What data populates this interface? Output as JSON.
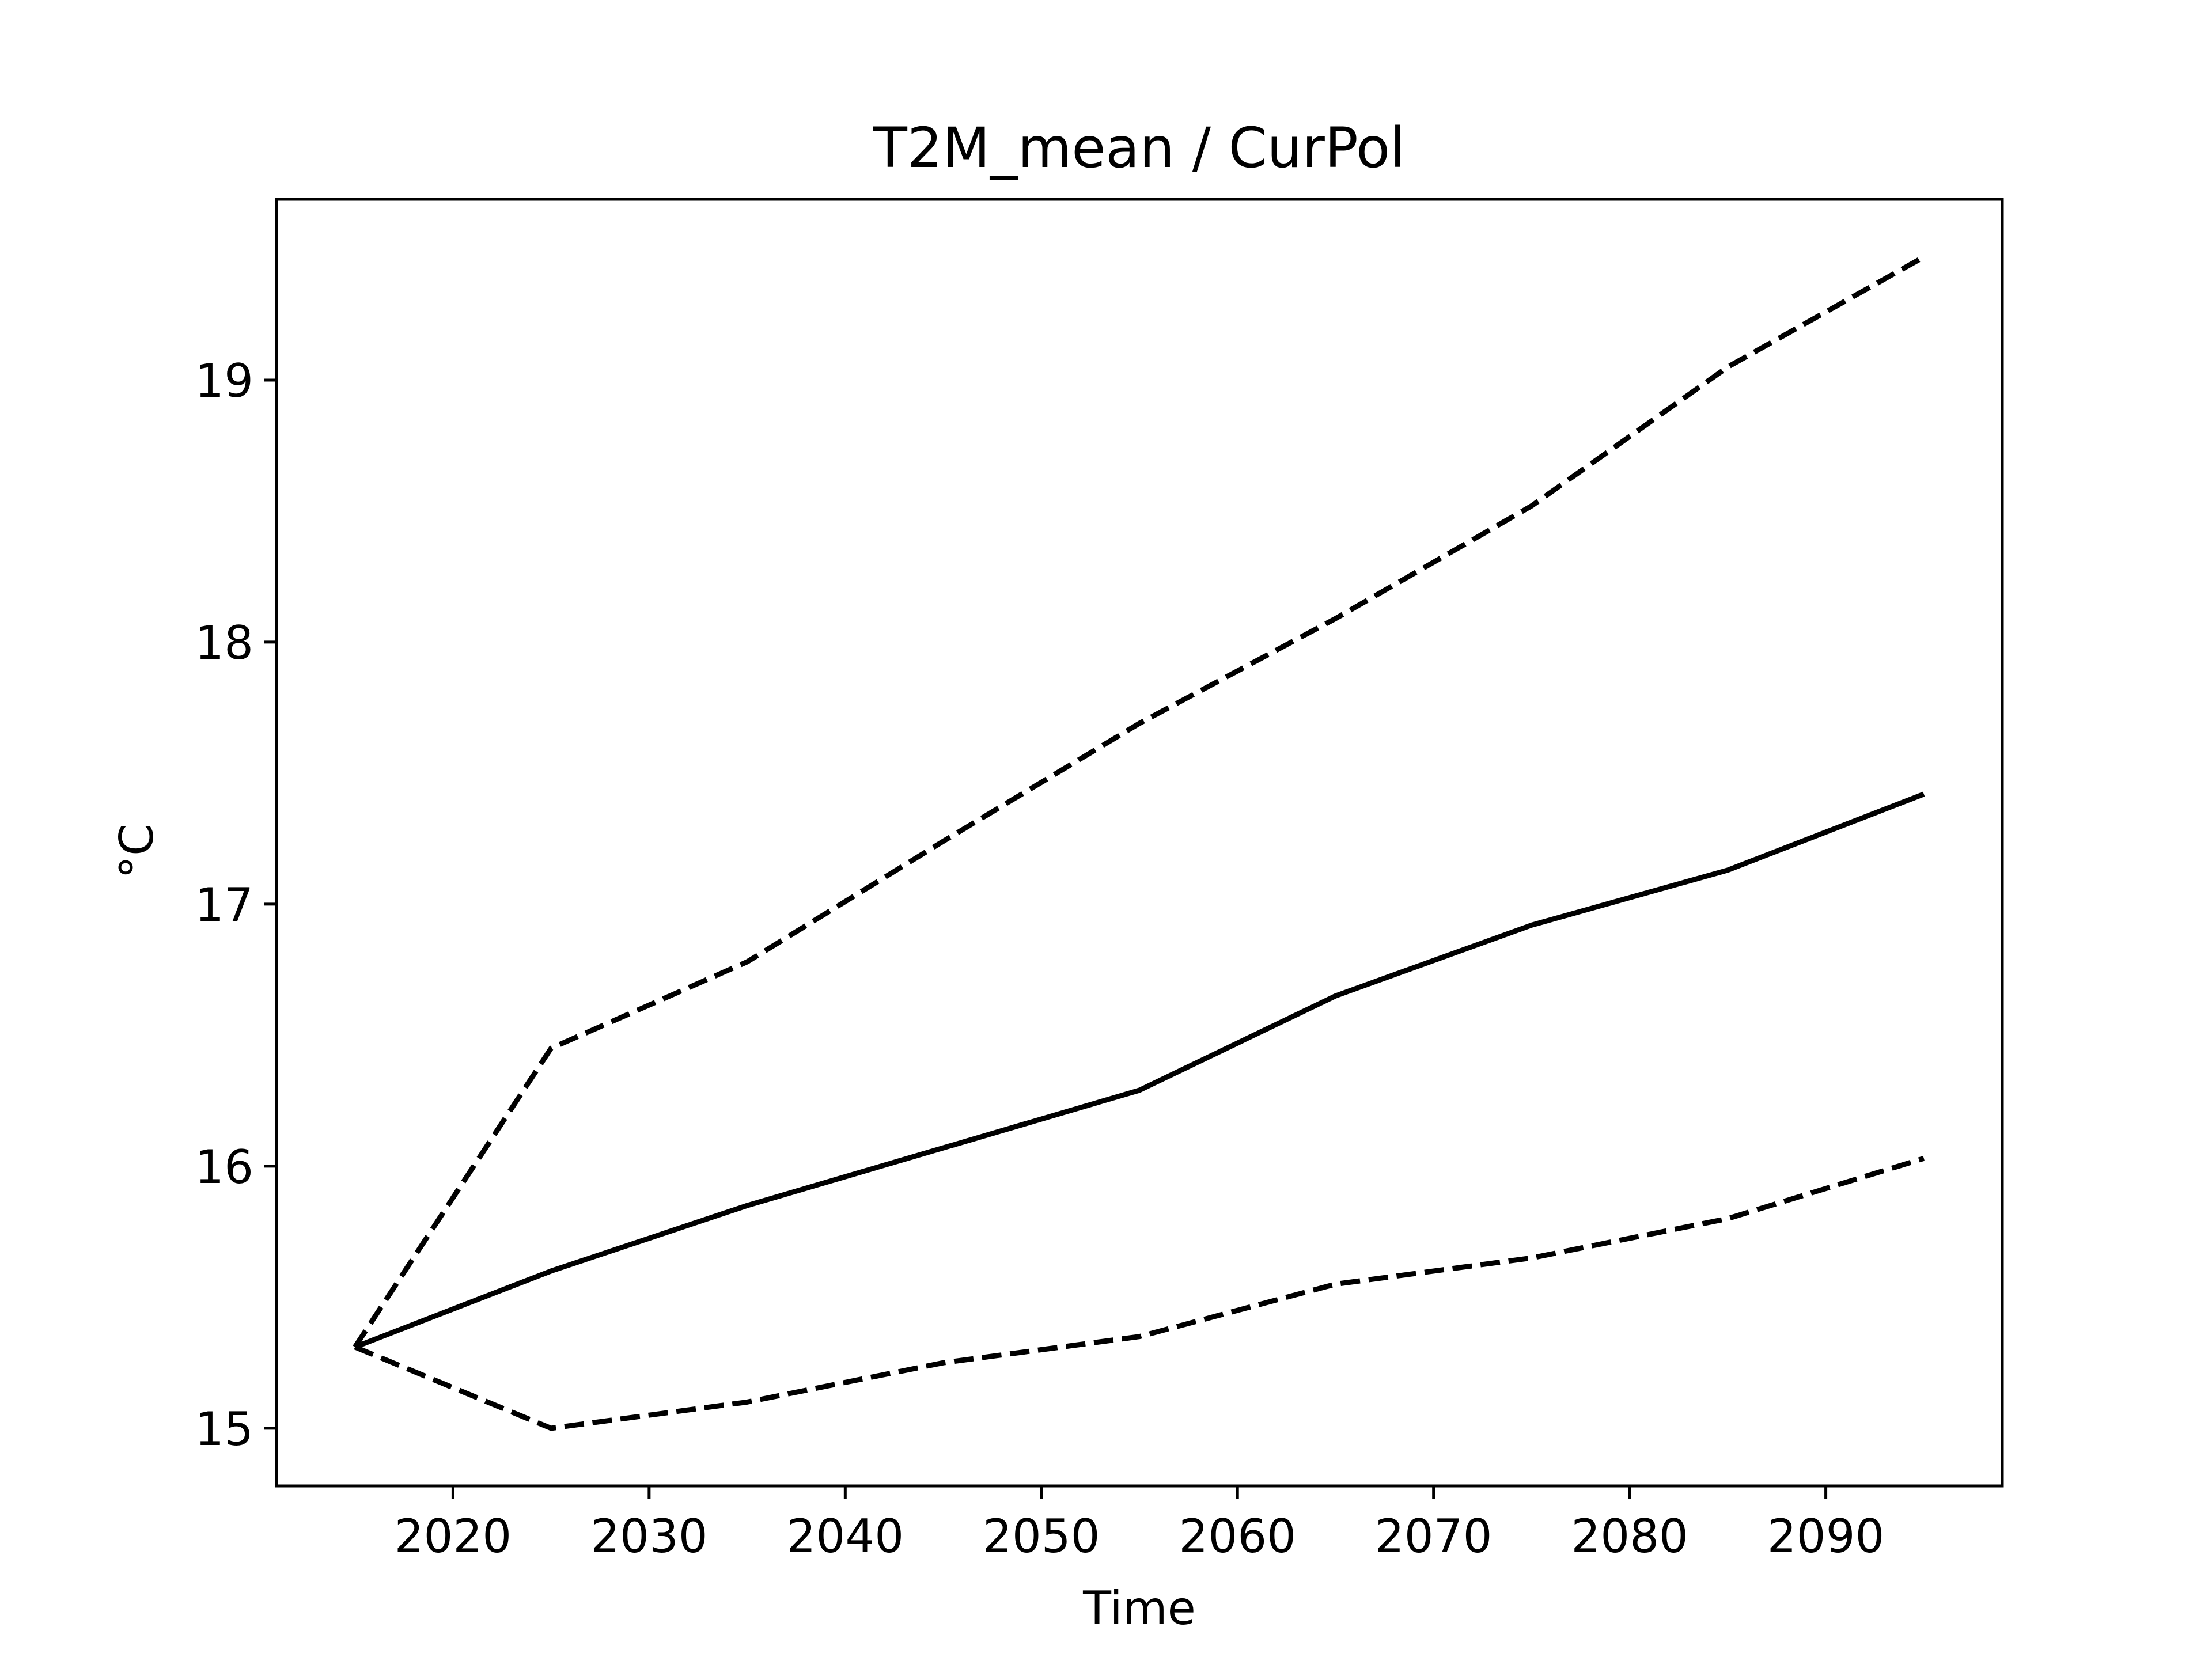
{
  "chart_data": {
    "type": "line",
    "title": "T2M_mean / CurPol",
    "xlabel": "Time",
    "ylabel": "°C",
    "xlim": [
      2011,
      2099
    ],
    "ylim": [
      14.78,
      19.69
    ],
    "x_ticks": [
      2020,
      2030,
      2040,
      2050,
      2060,
      2070,
      2080,
      2090
    ],
    "y_ticks": [
      15,
      16,
      17,
      18,
      19
    ],
    "grid": false,
    "legend": "none",
    "x": [
      2015,
      2025,
      2035,
      2045,
      2055,
      2065,
      2075,
      2085,
      2095
    ],
    "series": [
      {
        "style": "dashed",
        "color": "#000000",
        "values": [
          15.31,
          16.45,
          16.78,
          17.24,
          17.69,
          18.09,
          18.52,
          19.05,
          19.47
        ]
      },
      {
        "style": "solid",
        "color": "#000000",
        "values": [
          15.31,
          15.6,
          15.85,
          16.07,
          16.29,
          16.65,
          16.92,
          17.13,
          17.42
        ]
      },
      {
        "style": "dashed",
        "color": "#000000",
        "values": [
          15.31,
          15.0,
          15.1,
          15.25,
          15.35,
          15.55,
          15.65,
          15.8,
          16.03
        ]
      }
    ]
  }
}
